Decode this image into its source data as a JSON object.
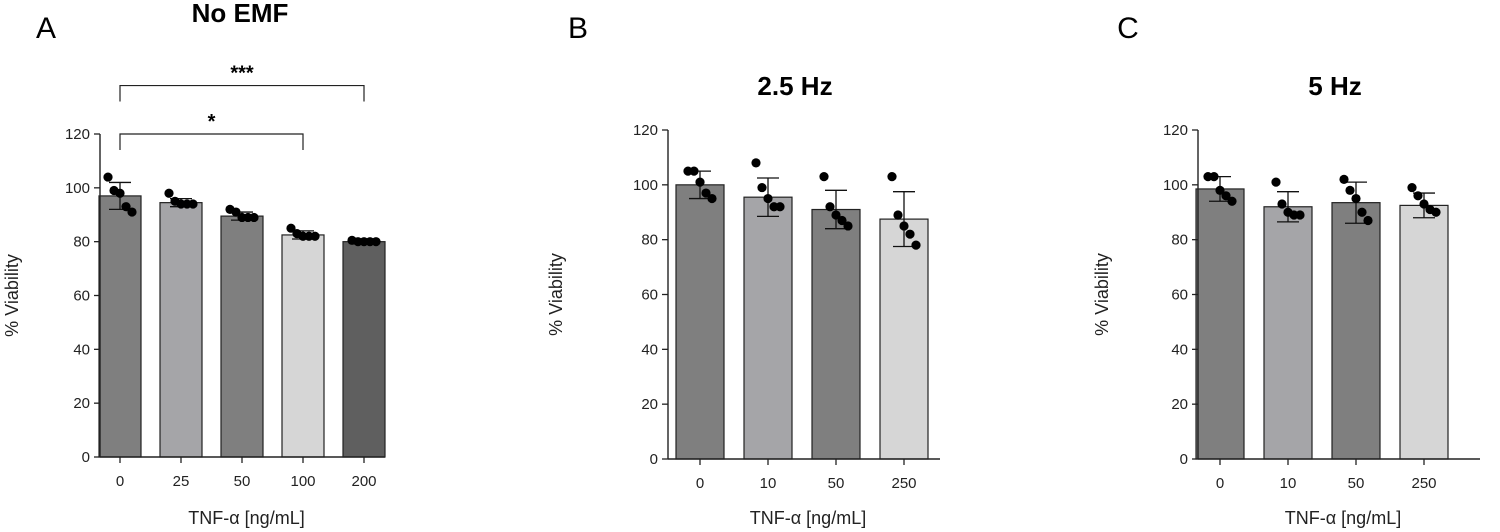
{
  "chart_data": [
    {
      "type": "bar",
      "panel_label": "A",
      "title": "No EMF",
      "xlabel": "TNF-α [ng/mL]",
      "ylabel": "% Viability",
      "ylim": [
        0,
        120
      ],
      "yticks": [
        0,
        20,
        40,
        60,
        80,
        100,
        120
      ],
      "grid": false,
      "categories": [
        "0",
        "25",
        "50",
        "100",
        "200"
      ],
      "values": [
        97,
        94.5,
        89.5,
        82.5,
        80
      ],
      "errors": [
        5,
        1.5,
        1.5,
        1.5,
        0.8
      ],
      "bar_colors": [
        "#7f7f7f",
        "#a5a5a8",
        "#7f7f7f",
        "#d6d6d6",
        "#5f5f5f"
      ],
      "points": [
        [
          104,
          99,
          98,
          93,
          91
        ],
        [
          98,
          95,
          94,
          94,
          94
        ],
        [
          92,
          91,
          89,
          89,
          89
        ],
        [
          85,
          83,
          82,
          82,
          82
        ],
        [
          80.5,
          80,
          80,
          80,
          80
        ]
      ],
      "significance": [
        {
          "from": "0",
          "to": "100",
          "label": "*",
          "y": 120
        },
        {
          "from": "0",
          "to": "200",
          "label": "***",
          "y": 138
        }
      ]
    },
    {
      "type": "bar",
      "panel_label": "B",
      "title": "2.5 Hz",
      "xlabel": "TNF-α [ng/mL]",
      "ylabel": "% Viability",
      "ylim": [
        0,
        120
      ],
      "yticks": [
        0,
        20,
        40,
        60,
        80,
        100,
        120
      ],
      "grid": false,
      "categories": [
        "0",
        "10",
        "50",
        "250"
      ],
      "values": [
        100,
        95.5,
        91,
        87.5
      ],
      "errors": [
        5,
        7,
        7,
        10
      ],
      "bar_colors": [
        "#7f7f7f",
        "#a5a5a8",
        "#7f7f7f",
        "#d6d6d6"
      ],
      "points": [
        [
          105,
          105,
          101,
          97,
          95
        ],
        [
          108,
          99,
          95,
          92,
          92
        ],
        [
          103,
          92,
          89,
          87,
          85
        ],
        [
          103,
          89,
          85,
          82,
          78
        ]
      ]
    },
    {
      "type": "bar",
      "panel_label": "C",
      "title": "5 Hz",
      "xlabel": "TNF-α [ng/mL]",
      "ylabel": "% Viability",
      "ylim": [
        0,
        120
      ],
      "yticks": [
        0,
        20,
        40,
        60,
        80,
        100,
        120
      ],
      "grid": false,
      "categories": [
        "0",
        "10",
        "50",
        "250"
      ],
      "values": [
        98.5,
        92,
        93.5,
        92.5
      ],
      "errors": [
        4.5,
        5.5,
        7.5,
        4.5
      ],
      "bar_colors": [
        "#7f7f7f",
        "#a5a5a8",
        "#7f7f7f",
        "#d6d6d6"
      ],
      "points": [
        [
          103,
          103,
          98,
          96,
          94
        ],
        [
          101,
          93,
          90,
          89,
          89
        ],
        [
          102,
          98,
          95,
          90,
          87
        ],
        [
          99,
          96,
          93,
          91,
          90
        ]
      ]
    }
  ]
}
